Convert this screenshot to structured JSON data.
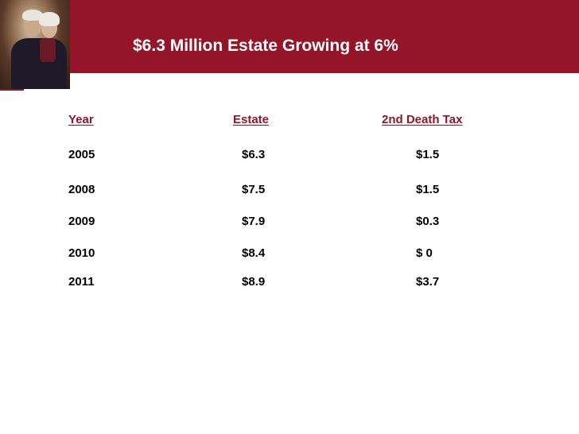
{
  "slide": {
    "title": "$6.3 Million Estate Growing at 6%"
  },
  "table": {
    "headers": [
      "Year",
      "Estate",
      "2nd Death Tax"
    ],
    "rows": [
      {
        "year": "2005",
        "estate": "$6.3",
        "tax": "$1.5"
      },
      {
        "year": "2008",
        "estate": "$7.5",
        "tax": "$1.5"
      },
      {
        "year": "2009",
        "estate": "$7.9",
        "tax": "$0.3"
      },
      {
        "year": "2010",
        "estate": "$8.4",
        "tax": "$ 0"
      },
      {
        "year": "2011",
        "estate": "$8.9",
        "tax": "$3.7"
      }
    ]
  },
  "colors": {
    "brand": "#941428",
    "text": "#000000",
    "background": "#ffffff"
  }
}
